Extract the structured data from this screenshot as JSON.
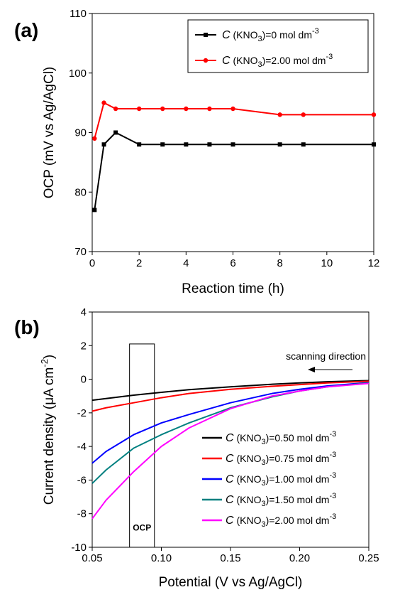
{
  "chart_data": [
    {
      "type": "line",
      "panel_label": "(a)",
      "xlabel": "Reaction time (h)",
      "ylabel": "OCP (mV vs Ag/AgCl)",
      "xlim": [
        0,
        12
      ],
      "ylim": [
        70,
        110
      ],
      "xticks": [
        0,
        2,
        4,
        6,
        8,
        10,
        12
      ],
      "yticks": [
        70,
        80,
        90,
        100,
        110
      ],
      "legend_position": "top-right",
      "series": [
        {
          "name": "C(KNO3)=0 mol dm-3",
          "label_prefix": "(KNO",
          "label_sub": "3",
          "label_mid": ")=0 mol dm",
          "label_sup": "-3",
          "color": "#000000",
          "marker": "square",
          "x": [
            0.1,
            0.5,
            1,
            2,
            3,
            4,
            5,
            6,
            8,
            9,
            12
          ],
          "y": [
            77,
            88,
            90,
            88,
            88,
            88,
            88,
            88,
            88,
            88,
            88
          ]
        },
        {
          "name": "C(KNO3)=2.00 mol dm-3",
          "label_prefix": "(KNO",
          "label_sub": "3",
          "label_mid": ")=2.00 mol dm",
          "label_sup": "-3",
          "color": "#ff0000",
          "marker": "circle",
          "x": [
            0.1,
            0.5,
            1,
            2,
            3,
            4,
            5,
            6,
            8,
            9,
            12
          ],
          "y": [
            89,
            95,
            94,
            94,
            94,
            94,
            94,
            94,
            93,
            93,
            93
          ]
        }
      ]
    },
    {
      "type": "line",
      "panel_label": "(b)",
      "xlabel": "Potential (V vs Ag/AgCl)",
      "ylabel_main": "Current density (μA cm",
      "ylabel_sup": "-2",
      "ylabel_close": ")",
      "xlim": [
        0.05,
        0.25
      ],
      "ylim": [
        -10,
        4
      ],
      "xticks": [
        0.05,
        0.1,
        0.15,
        0.2,
        0.25
      ],
      "xtick_labels": [
        "0.05",
        "0.10",
        "0.15",
        "0.20",
        "0.25"
      ],
      "yticks": [
        -10,
        -8,
        -6,
        -4,
        -2,
        0,
        2,
        4
      ],
      "legend_position": "bottom-right",
      "annotations": {
        "scan_text": "scanning direction",
        "ocp_text": "OCP",
        "ocp_box_x": [
          0.077,
          0.095
        ],
        "ocp_box_ytop": 2.1
      },
      "series": [
        {
          "name": "C(KNO3)=0.50 mol dm-3",
          "label_prefix": "(KNO",
          "label_sub": "3",
          "label_mid": ")=0.50 mol dm",
          "label_sup": "-3",
          "color": "#000000",
          "x": [
            0.05,
            0.06,
            0.08,
            0.1,
            0.12,
            0.15,
            0.18,
            0.2,
            0.22,
            0.25
          ],
          "y": [
            -1.25,
            -1.15,
            -0.95,
            -0.78,
            -0.62,
            -0.45,
            -0.3,
            -0.22,
            -0.15,
            -0.08
          ]
        },
        {
          "name": "C(KNO3)=0.75 mol dm-3",
          "label_prefix": "(KNO",
          "label_sub": "3",
          "label_mid": ")=0.75 mol dm",
          "label_sup": "-3",
          "color": "#ff0000",
          "x": [
            0.05,
            0.06,
            0.08,
            0.1,
            0.12,
            0.15,
            0.18,
            0.2,
            0.22,
            0.25
          ],
          "y": [
            -1.9,
            -1.7,
            -1.4,
            -1.1,
            -0.85,
            -0.6,
            -0.42,
            -0.32,
            -0.22,
            -0.12
          ]
        },
        {
          "name": "C(KNO3)=1.00 mol dm-3",
          "label_prefix": "(KNO",
          "label_sub": "3",
          "label_mid": ")=1.00 mol dm",
          "label_sup": "-3",
          "color": "#0000ff",
          "x": [
            0.05,
            0.06,
            0.08,
            0.1,
            0.12,
            0.15,
            0.18,
            0.2,
            0.22,
            0.25
          ],
          "y": [
            -5.0,
            -4.3,
            -3.3,
            -2.6,
            -2.1,
            -1.4,
            -0.85,
            -0.6,
            -0.4,
            -0.2
          ]
        },
        {
          "name": "C(KNO3)=1.50 mol dm-3",
          "label_prefix": "(KNO",
          "label_sub": "3",
          "label_mid": ")=1.50 mol dm",
          "label_sup": "-3",
          "color": "#008080",
          "x": [
            0.05,
            0.06,
            0.08,
            0.1,
            0.12,
            0.15,
            0.18,
            0.2,
            0.22,
            0.25
          ],
          "y": [
            -6.2,
            -5.4,
            -4.1,
            -3.3,
            -2.6,
            -1.7,
            -1.05,
            -0.7,
            -0.45,
            -0.22
          ]
        },
        {
          "name": "C(KNO3)=2.00 mol dm-3",
          "label_prefix": "(KNO",
          "label_sub": "3",
          "label_mid": ")=2.00 mol dm",
          "label_sup": "-3",
          "color": "#ff00ff",
          "x": [
            0.05,
            0.06,
            0.08,
            0.1,
            0.12,
            0.15,
            0.18,
            0.2,
            0.22,
            0.25
          ],
          "y": [
            -8.3,
            -7.2,
            -5.5,
            -4.0,
            -2.9,
            -1.75,
            -1.0,
            -0.7,
            -0.45,
            -0.25
          ]
        }
      ]
    }
  ]
}
